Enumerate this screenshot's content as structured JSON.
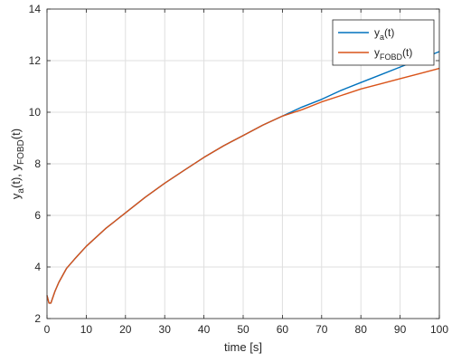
{
  "chart_data": {
    "type": "line",
    "xlabel": "time [s]",
    "ylabel": {
      "parts": [
        "y",
        "a",
        "(t), y",
        "FOBD",
        "(t)"
      ]
    },
    "xlim": [
      0,
      100
    ],
    "ylim": [
      2,
      14
    ],
    "xticks": [
      "0",
      "10",
      "20",
      "30",
      "40",
      "50",
      "60",
      "70",
      "80",
      "90",
      "100"
    ],
    "yticks": [
      "2",
      "4",
      "6",
      "8",
      "10",
      "12",
      "14"
    ],
    "grid": true,
    "legend_position": "top-right",
    "series": [
      {
        "name": {
          "base": "y",
          "sub": "a",
          "suffix": "(t)"
        },
        "color": "#0072BD",
        "x": [
          0,
          0.5,
          1,
          2,
          3,
          5,
          7,
          10,
          15,
          20,
          25,
          30,
          35,
          40,
          45,
          50,
          55,
          60,
          65,
          70,
          75,
          80,
          85,
          90,
          95,
          100
        ],
        "y": [
          2.9,
          2.6,
          2.6,
          3.05,
          3.4,
          3.95,
          4.3,
          4.8,
          5.5,
          6.1,
          6.7,
          7.25,
          7.75,
          8.25,
          8.7,
          9.1,
          9.5,
          9.85,
          10.2,
          10.5,
          10.85,
          11.15,
          11.45,
          11.75,
          12.05,
          12.35
        ]
      },
      {
        "name": {
          "base": "y",
          "sub": "FOBD",
          "suffix": "(t)"
        },
        "color": "#D95319",
        "x": [
          0,
          0.5,
          1,
          2,
          3,
          5,
          7,
          10,
          15,
          20,
          25,
          30,
          35,
          40,
          45,
          50,
          55,
          60,
          65,
          70,
          75,
          80,
          85,
          90,
          95,
          100
        ],
        "y": [
          2.9,
          2.6,
          2.6,
          3.05,
          3.4,
          3.95,
          4.3,
          4.8,
          5.5,
          6.1,
          6.7,
          7.25,
          7.75,
          8.25,
          8.7,
          9.1,
          9.5,
          9.85,
          10.1,
          10.4,
          10.65,
          10.9,
          11.1,
          11.3,
          11.5,
          11.7
        ]
      }
    ]
  }
}
